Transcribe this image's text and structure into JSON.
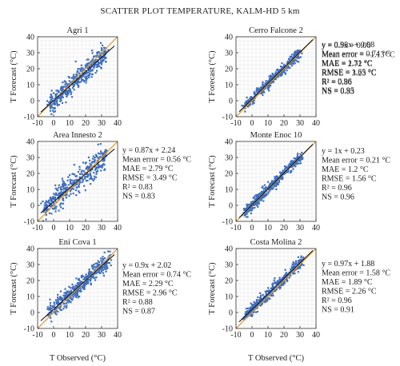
{
  "figure_title": "SCATTER PLOT TEMPERATURE, KALM-HD 5 km",
  "colors": {
    "points": "#3f6fbe",
    "fit_line": "#1a1a1a",
    "identity_line": "#e39a2b",
    "grid": "#e6e6e6"
  },
  "chart_data": [
    {
      "type": "scatter",
      "title": "Agri 1",
      "xlabel": "",
      "ylabel": "T Forecast (°C)",
      "xlim": [
        -10,
        40
      ],
      "ylim": [
        -10,
        40
      ],
      "xticks": [
        -10,
        0,
        10,
        20,
        30,
        40
      ],
      "yticks": [
        -10,
        0,
        10,
        20,
        30,
        40
      ],
      "grid": true,
      "identity_line": true,
      "obs_range": [
        -3,
        33
      ],
      "regression": {
        "slope": 0.9,
        "intercept": 0.06
      },
      "stats": [
        "y = 0.9x + 0.06",
        "Mean error = −1.13 °C",
        "MAE = 2.72 °C",
        "RMSE = 3.23 °C",
        "R² = 0.86",
        "NS = 0.83"
      ]
    },
    {
      "type": "scatter",
      "title": "Cerro Falcone 2",
      "xlabel": "",
      "ylabel": "T Forecast (°C)",
      "xlim": [
        -10,
        40
      ],
      "ylim": [
        -10,
        40
      ],
      "xticks": [
        -10,
        0,
        10,
        20,
        30,
        40
      ],
      "yticks": [
        -10,
        0,
        10,
        20,
        30,
        40
      ],
      "grid": true,
      "identity_line": true,
      "obs_range": [
        -5,
        30
      ],
      "regression": {
        "slope": 0.98,
        "intercept": 0.98
      },
      "stats": [
        "y = 0.98x + 0.98",
        "Mean error = 0.74 °C",
        "MAE = 1.31 °C",
        "RMSE = 1.65 °C",
        "R² = 0.96",
        "NS = 0.95"
      ]
    },
    {
      "type": "scatter",
      "title": "Area Innesto 2",
      "xlabel": "",
      "ylabel": "T Forecast (°C)",
      "xlim": [
        -10,
        40
      ],
      "ylim": [
        -10,
        40
      ],
      "xticks": [
        -10,
        0,
        10,
        20,
        30,
        40
      ],
      "yticks": [
        -10,
        0,
        10,
        20,
        30,
        40
      ],
      "grid": true,
      "identity_line": true,
      "obs_range": [
        -6,
        33
      ],
      "regression": {
        "slope": 0.87,
        "intercept": 2.24
      },
      "stats": [
        "y = 0.87x + 2.24",
        "Mean error = 0.56 °C",
        "MAE = 2.79 °C",
        "RMSE = 3.49 °C",
        "R² = 0.83",
        "NS = 0.83"
      ]
    },
    {
      "type": "scatter",
      "title": "Monte Enoc 10",
      "xlabel": "",
      "ylabel": "T Forecast (°C)",
      "xlim": [
        -10,
        40
      ],
      "ylim": [
        -10,
        40
      ],
      "xticks": [
        -10,
        0,
        10,
        20,
        30,
        40
      ],
      "yticks": [
        -10,
        0,
        10,
        20,
        30,
        40
      ],
      "grid": true,
      "identity_line": true,
      "obs_range": [
        -5,
        31
      ],
      "regression": {
        "slope": 1,
        "intercept": 0.23
      },
      "stats": [
        "y = 1x + 0.23",
        "Mean error = 0.21 °C",
        "MAE = 1.2 °C",
        "RMSE = 1.56 °C",
        "R² = 0.96",
        "NS = 0.96"
      ]
    },
    {
      "type": "scatter",
      "title": "Eni Cova 1",
      "xlabel": "",
      "ylabel": "T Forecast (°C)",
      "xlim": [
        -10,
        40
      ],
      "ylim": [
        -10,
        40
      ],
      "xticks": [
        -10,
        0,
        10,
        20,
        30,
        40
      ],
      "yticks": [
        -10,
        0,
        10,
        20,
        30,
        40
      ],
      "grid": true,
      "identity_line": true,
      "obs_range": [
        -3,
        35
      ],
      "regression": {
        "slope": 0.9,
        "intercept": 2.02
      },
      "stats": [
        "y = 0.9x + 2.02",
        "Mean error = 0.74 °C",
        "MAE = 2.29 °C",
        "RMSE = 2.96 °C",
        "R² = 0.88",
        "NS = 0.87"
      ]
    },
    {
      "type": "scatter",
      "title": "Costa Molina 2",
      "xlabel": "",
      "ylabel": "T Forecast (°C)",
      "xlim": [
        -10,
        40
      ],
      "ylim": [
        -10,
        40
      ],
      "xticks": [
        -10,
        0,
        10,
        20,
        30,
        40
      ],
      "yticks": [
        -10,
        0,
        10,
        20,
        30,
        40
      ],
      "grid": true,
      "identity_line": true,
      "obs_range": [
        -5,
        32
      ],
      "regression": {
        "slope": 0.97,
        "intercept": 1.88
      },
      "stats": [
        "y = 0.97x + 1.88",
        "Mean error = 1.58 °C",
        "MAE = 1.89 °C",
        "RMSE = 2.26 °C",
        "R² = 0.96",
        "NS = 0.91"
      ]
    }
  ],
  "bottom_xlabel": "T Observed (°C)"
}
